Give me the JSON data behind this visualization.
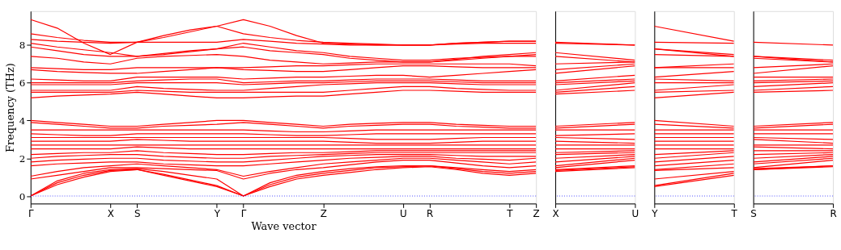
{
  "chart_data": [
    {
      "type": "line",
      "xlabel": "Wave vector",
      "ylabel": "Frequency (THz)",
      "categories": [
        "Γ",
        null,
        null,
        "X",
        "S",
        null,
        null,
        "Y",
        "Γ",
        null,
        null,
        "Z",
        null,
        null,
        "U",
        "R",
        null,
        null,
        "T",
        "Z"
      ],
      "ylim": [
        -0.4,
        9.8
      ],
      "yticks": [
        0,
        2,
        4,
        6,
        8
      ],
      "legend": false,
      "ref_lines": [
        {
          "axis": "y",
          "value": 0,
          "color": "#0000ff",
          "line_style": "dotted"
        }
      ],
      "series": [
        {
          "color": "#ff0000",
          "values": [
            0,
            0.6,
            1.0,
            1.3,
            1.4,
            1.1,
            0.8,
            0.5,
            0,
            0.5,
            0.9,
            1.1,
            1.25,
            1.4,
            1.5,
            1.55,
            1.4,
            1.2,
            1.1,
            1.2
          ]
        },
        {
          "color": "#ff0000",
          "values": [
            0,
            0.7,
            1.1,
            1.35,
            1.4,
            1.15,
            0.85,
            0.55,
            0,
            0.6,
            1.0,
            1.2,
            1.35,
            1.5,
            1.55,
            1.6,
            1.45,
            1.3,
            1.2,
            1.3
          ]
        },
        {
          "color": "#ff0000",
          "values": [
            0,
            0.8,
            1.2,
            1.4,
            1.45,
            1.3,
            1.1,
            0.9,
            0,
            0.7,
            1.1,
            1.3,
            1.45,
            1.55,
            1.6,
            1.6,
            1.5,
            1.4,
            1.3,
            1.4
          ]
        },
        {
          "color": "#ff0000",
          "values": [
            0.9,
            1.1,
            1.3,
            1.5,
            1.5,
            1.45,
            1.4,
            1.35,
            0.9,
            1.2,
            1.4,
            1.5,
            1.65,
            1.8,
            1.9,
            1.9,
            1.75,
            1.6,
            1.5,
            1.6
          ]
        },
        {
          "color": "#ff0000",
          "values": [
            1.05,
            1.3,
            1.5,
            1.6,
            1.7,
            1.6,
            1.5,
            1.4,
            1.05,
            1.3,
            1.5,
            1.7,
            1.8,
            1.9,
            2.0,
            2.0,
            1.9,
            1.8,
            1.7,
            1.8
          ]
        },
        {
          "color": "#ff0000",
          "values": [
            1.6,
            1.7,
            1.75,
            1.8,
            1.8,
            1.7,
            1.65,
            1.6,
            1.6,
            1.7,
            1.8,
            1.9,
            2.0,
            2.05,
            2.1,
            2.1,
            2.0,
            1.95,
            1.9,
            2.0
          ]
        },
        {
          "color": "#ff0000",
          "values": [
            1.8,
            1.9,
            1.95,
            2.0,
            2.0,
            1.9,
            1.85,
            1.8,
            1.8,
            1.9,
            2.0,
            2.1,
            2.15,
            2.2,
            2.2,
            2.2,
            2.15,
            2.1,
            2.1,
            2.1
          ]
        },
        {
          "color": "#ff0000",
          "values": [
            2.0,
            2.1,
            2.15,
            2.2,
            2.2,
            2.1,
            2.05,
            2.0,
            2.0,
            2.1,
            2.15,
            2.2,
            2.25,
            2.3,
            2.3,
            2.3,
            2.3,
            2.3,
            2.3,
            2.3
          ]
        },
        {
          "color": "#ff0000",
          "values": [
            2.2,
            2.25,
            2.3,
            2.3,
            2.4,
            2.3,
            2.25,
            2.2,
            2.2,
            2.25,
            2.3,
            2.3,
            2.35,
            2.4,
            2.4,
            2.4,
            2.4,
            2.4,
            2.4,
            2.4
          ]
        },
        {
          "color": "#ff0000",
          "values": [
            2.5,
            2.5,
            2.5,
            2.5,
            2.6,
            2.55,
            2.5,
            2.5,
            2.5,
            2.5,
            2.5,
            2.5,
            2.5,
            2.5,
            2.5,
            2.5,
            2.5,
            2.5,
            2.5,
            2.5
          ]
        },
        {
          "color": "#ff0000",
          "values": [
            2.7,
            2.7,
            2.7,
            2.7,
            2.7,
            2.7,
            2.7,
            2.7,
            2.7,
            2.7,
            2.7,
            2.7,
            2.7,
            2.7,
            2.7,
            2.7,
            2.7,
            2.7,
            2.7,
            2.7
          ]
        },
        {
          "color": "#ff0000",
          "values": [
            2.9,
            2.9,
            2.9,
            2.9,
            3.0,
            2.95,
            2.9,
            2.9,
            2.9,
            2.9,
            2.9,
            2.9,
            2.85,
            2.8,
            2.8,
            2.8,
            2.85,
            2.9,
            2.9,
            2.9
          ]
        },
        {
          "color": "#ff0000",
          "values": [
            3.1,
            3.1,
            3.1,
            3.1,
            3.1,
            3.1,
            3.1,
            3.1,
            3.1,
            3.1,
            3.1,
            3.1,
            3.05,
            3.0,
            3.0,
            3.0,
            3.05,
            3.1,
            3.1,
            3.1
          ]
        },
        {
          "color": "#ff0000",
          "values": [
            3.3,
            3.25,
            3.2,
            3.2,
            3.3,
            3.3,
            3.3,
            3.3,
            3.3,
            3.25,
            3.2,
            3.2,
            3.25,
            3.3,
            3.3,
            3.3,
            3.3,
            3.3,
            3.3,
            3.3
          ]
        },
        {
          "color": "#ff0000",
          "values": [
            3.5,
            3.5,
            3.5,
            3.5,
            3.5,
            3.5,
            3.5,
            3.5,
            3.5,
            3.45,
            3.4,
            3.4,
            3.45,
            3.5,
            3.5,
            3.5,
            3.5,
            3.5,
            3.5,
            3.5
          ]
        },
        {
          "color": "#ff0000",
          "values": [
            3.9,
            3.8,
            3.7,
            3.6,
            3.6,
            3.7,
            3.75,
            3.8,
            3.9,
            3.8,
            3.7,
            3.6,
            3.7,
            3.75,
            3.8,
            3.8,
            3.7,
            3.65,
            3.6,
            3.6
          ]
        },
        {
          "color": "#ff0000",
          "values": [
            4.0,
            3.9,
            3.8,
            3.7,
            3.7,
            3.8,
            3.9,
            4.0,
            4.0,
            3.9,
            3.8,
            3.7,
            3.8,
            3.85,
            3.9,
            3.9,
            3.8,
            3.75,
            3.7,
            3.7
          ]
        },
        {
          "color": "#ff0000",
          "values": [
            5.2,
            5.3,
            5.35,
            5.4,
            5.5,
            5.4,
            5.3,
            5.2,
            5.2,
            5.25,
            5.3,
            5.3,
            5.4,
            5.5,
            5.6,
            5.6,
            5.55,
            5.5,
            5.5,
            5.5
          ]
        },
        {
          "color": "#ff0000",
          "values": [
            5.5,
            5.5,
            5.5,
            5.5,
            5.6,
            5.55,
            5.5,
            5.5,
            5.5,
            5.5,
            5.5,
            5.5,
            5.6,
            5.7,
            5.8,
            5.8,
            5.7,
            5.65,
            5.6,
            5.6
          ]
        },
        {
          "color": "#ff0000",
          "values": [
            5.6,
            5.6,
            5.6,
            5.6,
            5.8,
            5.7,
            5.65,
            5.6,
            5.6,
            5.7,
            5.8,
            5.9,
            5.95,
            6.0,
            6.0,
            6.0,
            5.95,
            5.9,
            5.9,
            5.9
          ]
        },
        {
          "color": "#ff0000",
          "values": [
            5.9,
            5.9,
            5.9,
            5.9,
            6.0,
            6.0,
            6.0,
            6.0,
            5.9,
            5.95,
            6.0,
            6.0,
            6.05,
            6.1,
            6.1,
            6.1,
            6.05,
            6.0,
            6.0,
            6.0
          ]
        },
        {
          "color": "#ff0000",
          "values": [
            6.0,
            6.0,
            6.0,
            6.0,
            6.1,
            6.15,
            6.2,
            6.2,
            6.0,
            6.05,
            6.1,
            6.1,
            6.15,
            6.2,
            6.2,
            6.2,
            6.15,
            6.1,
            6.1,
            6.1
          ]
        },
        {
          "color": "#ff0000",
          "values": [
            6.2,
            6.15,
            6.1,
            6.1,
            6.3,
            6.3,
            6.3,
            6.3,
            6.2,
            6.25,
            6.3,
            6.3,
            6.35,
            6.4,
            6.4,
            6.3,
            6.4,
            6.5,
            6.6,
            6.7
          ]
        },
        {
          "color": "#ff0000",
          "values": [
            6.7,
            6.6,
            6.55,
            6.5,
            6.5,
            6.6,
            6.7,
            6.8,
            6.7,
            6.65,
            6.6,
            6.6,
            6.7,
            6.8,
            6.9,
            6.9,
            6.85,
            6.8,
            6.8,
            6.8
          ]
        },
        {
          "color": "#ff0000",
          "values": [
            6.8,
            6.75,
            6.7,
            6.7,
            6.8,
            6.8,
            6.8,
            6.8,
            6.8,
            6.85,
            6.9,
            6.9,
            6.95,
            7.0,
            7.0,
            7.0,
            7.0,
            7.0,
            7.0,
            6.9
          ]
        },
        {
          "color": "#ff0000",
          "values": [
            7.4,
            7.3,
            7.1,
            7.0,
            7.3,
            7.4,
            7.45,
            7.5,
            7.4,
            7.2,
            7.1,
            7.0,
            7.05,
            7.1,
            7.1,
            7.1,
            7.2,
            7.3,
            7.4,
            7.5
          ]
        },
        {
          "color": "#ff0000",
          "values": [
            7.9,
            7.7,
            7.5,
            7.4,
            7.4,
            7.55,
            7.7,
            7.8,
            7.9,
            7.7,
            7.6,
            7.5,
            7.3,
            7.2,
            7.1,
            7.1,
            7.25,
            7.4,
            7.5,
            7.6
          ]
        },
        {
          "color": "#ff0000",
          "values": [
            8.1,
            7.9,
            7.75,
            7.6,
            7.4,
            7.5,
            7.65,
            7.8,
            8.1,
            7.9,
            7.7,
            7.6,
            7.4,
            7.3,
            7.2,
            7.2,
            7.3,
            7.35,
            7.4,
            7.4
          ]
        },
        {
          "color": "#ff0000",
          "values": [
            8.3,
            8.2,
            8.15,
            8.1,
            8.15,
            8.15,
            8.15,
            8.15,
            8.3,
            8.2,
            8.1,
            8.05,
            8.0,
            8.0,
            8.0,
            8.0,
            8.05,
            8.1,
            8.1,
            8.1
          ]
        },
        {
          "color": "#ff0000",
          "values": [
            8.6,
            8.4,
            8.25,
            8.15,
            8.15,
            8.4,
            8.7,
            9.0,
            8.6,
            8.4,
            8.25,
            8.15,
            8.1,
            8.05,
            8.0,
            8.0,
            8.1,
            8.15,
            8.2,
            8.2
          ]
        },
        {
          "color": "#ff0000",
          "values": [
            9.35,
            8.9,
            8.1,
            7.5,
            8.15,
            8.5,
            8.8,
            9.0,
            9.35,
            9.0,
            8.5,
            8.1,
            8.05,
            8.0,
            8.0,
            8.0,
            8.1,
            8.15,
            8.2,
            8.2
          ]
        }
      ]
    },
    {
      "type": "line",
      "categories": [
        "X",
        "U"
      ],
      "ylim": [
        -0.4,
        9.8
      ],
      "tick_labels": "x",
      "legend": false,
      "ref_lines": [
        {
          "axis": "y",
          "value": 0,
          "color": "#0000ff",
          "line_style": "dotted"
        }
      ],
      "series": [
        {
          "color": "#ff0000",
          "values": [
            1.3,
            1.5
          ]
        },
        {
          "color": "#ff0000",
          "values": [
            1.35,
            1.55
          ]
        },
        {
          "color": "#ff0000",
          "values": [
            1.4,
            1.6
          ]
        },
        {
          "color": "#ff0000",
          "values": [
            1.5,
            1.9
          ]
        },
        {
          "color": "#ff0000",
          "values": [
            1.6,
            2.0
          ]
        },
        {
          "color": "#ff0000",
          "values": [
            1.8,
            2.1
          ]
        },
        {
          "color": "#ff0000",
          "values": [
            2.0,
            2.2
          ]
        },
        {
          "color": "#ff0000",
          "values": [
            2.2,
            2.3
          ]
        },
        {
          "color": "#ff0000",
          "values": [
            2.3,
            2.4
          ]
        },
        {
          "color": "#ff0000",
          "values": [
            2.5,
            2.5
          ]
        },
        {
          "color": "#ff0000",
          "values": [
            2.7,
            2.7
          ]
        },
        {
          "color": "#ff0000",
          "values": [
            2.9,
            2.8
          ]
        },
        {
          "color": "#ff0000",
          "values": [
            3.1,
            3.0
          ]
        },
        {
          "color": "#ff0000",
          "values": [
            3.2,
            3.3
          ]
        },
        {
          "color": "#ff0000",
          "values": [
            3.5,
            3.5
          ]
        },
        {
          "color": "#ff0000",
          "values": [
            3.6,
            3.8
          ]
        },
        {
          "color": "#ff0000",
          "values": [
            3.7,
            3.9
          ]
        },
        {
          "color": "#ff0000",
          "values": [
            5.4,
            5.6
          ]
        },
        {
          "color": "#ff0000",
          "values": [
            5.5,
            5.8
          ]
        },
        {
          "color": "#ff0000",
          "values": [
            5.6,
            6.0
          ]
        },
        {
          "color": "#ff0000",
          "values": [
            5.9,
            6.1
          ]
        },
        {
          "color": "#ff0000",
          "values": [
            6.0,
            6.2
          ]
        },
        {
          "color": "#ff0000",
          "values": [
            6.1,
            6.4
          ]
        },
        {
          "color": "#ff0000",
          "values": [
            6.5,
            6.9
          ]
        },
        {
          "color": "#ff0000",
          "values": [
            6.7,
            7.0
          ]
        },
        {
          "color": "#ff0000",
          "values": [
            7.0,
            7.1
          ]
        },
        {
          "color": "#ff0000",
          "values": [
            7.4,
            7.1
          ]
        },
        {
          "color": "#ff0000",
          "values": [
            7.6,
            7.2
          ]
        },
        {
          "color": "#ff0000",
          "values": [
            8.1,
            8.0
          ]
        },
        {
          "color": "#ff0000",
          "values": [
            8.15,
            8.0
          ]
        }
      ]
    },
    {
      "type": "line",
      "categories": [
        "Y",
        "T"
      ],
      "ylim": [
        -0.4,
        9.8
      ],
      "tick_labels": "x",
      "legend": false,
      "ref_lines": [
        {
          "axis": "y",
          "value": 0,
          "color": "#0000ff",
          "line_style": "dotted"
        }
      ],
      "series": [
        {
          "color": "#ff0000",
          "values": [
            0.5,
            1.1
          ]
        },
        {
          "color": "#ff0000",
          "values": [
            0.55,
            1.2
          ]
        },
        {
          "color": "#ff0000",
          "values": [
            0.9,
            1.3
          ]
        },
        {
          "color": "#ff0000",
          "values": [
            1.35,
            1.5
          ]
        },
        {
          "color": "#ff0000",
          "values": [
            1.4,
            1.7
          ]
        },
        {
          "color": "#ff0000",
          "values": [
            1.6,
            1.9
          ]
        },
        {
          "color": "#ff0000",
          "values": [
            1.8,
            2.1
          ]
        },
        {
          "color": "#ff0000",
          "values": [
            2.0,
            2.3
          ]
        },
        {
          "color": "#ff0000",
          "values": [
            2.2,
            2.4
          ]
        },
        {
          "color": "#ff0000",
          "values": [
            2.5,
            2.5
          ]
        },
        {
          "color": "#ff0000",
          "values": [
            2.7,
            2.7
          ]
        },
        {
          "color": "#ff0000",
          "values": [
            2.9,
            2.9
          ]
        },
        {
          "color": "#ff0000",
          "values": [
            3.1,
            3.1
          ]
        },
        {
          "color": "#ff0000",
          "values": [
            3.3,
            3.3
          ]
        },
        {
          "color": "#ff0000",
          "values": [
            3.5,
            3.5
          ]
        },
        {
          "color": "#ff0000",
          "values": [
            3.8,
            3.6
          ]
        },
        {
          "color": "#ff0000",
          "values": [
            4.0,
            3.7
          ]
        },
        {
          "color": "#ff0000",
          "values": [
            5.2,
            5.5
          ]
        },
        {
          "color": "#ff0000",
          "values": [
            5.5,
            5.6
          ]
        },
        {
          "color": "#ff0000",
          "values": [
            5.6,
            5.9
          ]
        },
        {
          "color": "#ff0000",
          "values": [
            6.0,
            6.0
          ]
        },
        {
          "color": "#ff0000",
          "values": [
            6.2,
            6.1
          ]
        },
        {
          "color": "#ff0000",
          "values": [
            6.3,
            6.6
          ]
        },
        {
          "color": "#ff0000",
          "values": [
            6.8,
            6.8
          ]
        },
        {
          "color": "#ff0000",
          "values": [
            6.8,
            7.0
          ]
        },
        {
          "color": "#ff0000",
          "values": [
            7.5,
            7.4
          ]
        },
        {
          "color": "#ff0000",
          "values": [
            7.8,
            7.5
          ]
        },
        {
          "color": "#ff0000",
          "values": [
            7.8,
            7.4
          ]
        },
        {
          "color": "#ff0000",
          "values": [
            8.15,
            8.1
          ]
        },
        {
          "color": "#ff0000",
          "values": [
            9.0,
            8.2
          ]
        }
      ]
    },
    {
      "type": "line",
      "categories": [
        "S",
        "R"
      ],
      "ylim": [
        -0.4,
        9.8
      ],
      "tick_labels": "x",
      "legend": false,
      "ref_lines": [
        {
          "axis": "y",
          "value": 0,
          "color": "#0000ff",
          "line_style": "dotted"
        }
      ],
      "series": [
        {
          "color": "#ff0000",
          "values": [
            1.4,
            1.55
          ]
        },
        {
          "color": "#ff0000",
          "values": [
            1.4,
            1.6
          ]
        },
        {
          "color": "#ff0000",
          "values": [
            1.45,
            1.6
          ]
        },
        {
          "color": "#ff0000",
          "values": [
            1.5,
            1.9
          ]
        },
        {
          "color": "#ff0000",
          "values": [
            1.7,
            2.0
          ]
        },
        {
          "color": "#ff0000",
          "values": [
            1.8,
            2.1
          ]
        },
        {
          "color": "#ff0000",
          "values": [
            2.0,
            2.2
          ]
        },
        {
          "color": "#ff0000",
          "values": [
            2.2,
            2.3
          ]
        },
        {
          "color": "#ff0000",
          "values": [
            2.4,
            2.4
          ]
        },
        {
          "color": "#ff0000",
          "values": [
            2.6,
            2.5
          ]
        },
        {
          "color": "#ff0000",
          "values": [
            2.7,
            2.7
          ]
        },
        {
          "color": "#ff0000",
          "values": [
            3.0,
            2.8
          ]
        },
        {
          "color": "#ff0000",
          "values": [
            3.1,
            3.0
          ]
        },
        {
          "color": "#ff0000",
          "values": [
            3.3,
            3.3
          ]
        },
        {
          "color": "#ff0000",
          "values": [
            3.5,
            3.5
          ]
        },
        {
          "color": "#ff0000",
          "values": [
            3.6,
            3.8
          ]
        },
        {
          "color": "#ff0000",
          "values": [
            3.7,
            3.9
          ]
        },
        {
          "color": "#ff0000",
          "values": [
            5.5,
            5.6
          ]
        },
        {
          "color": "#ff0000",
          "values": [
            5.6,
            5.8
          ]
        },
        {
          "color": "#ff0000",
          "values": [
            5.8,
            6.0
          ]
        },
        {
          "color": "#ff0000",
          "values": [
            6.0,
            6.1
          ]
        },
        {
          "color": "#ff0000",
          "values": [
            6.1,
            6.2
          ]
        },
        {
          "color": "#ff0000",
          "values": [
            6.3,
            6.3
          ]
        },
        {
          "color": "#ff0000",
          "values": [
            6.5,
            6.9
          ]
        },
        {
          "color": "#ff0000",
          "values": [
            6.8,
            7.0
          ]
        },
        {
          "color": "#ff0000",
          "values": [
            7.3,
            7.1
          ]
        },
        {
          "color": "#ff0000",
          "values": [
            7.4,
            7.1
          ]
        },
        {
          "color": "#ff0000",
          "values": [
            7.4,
            7.2
          ]
        },
        {
          "color": "#ff0000",
          "values": [
            8.15,
            8.0
          ]
        }
      ]
    }
  ]
}
